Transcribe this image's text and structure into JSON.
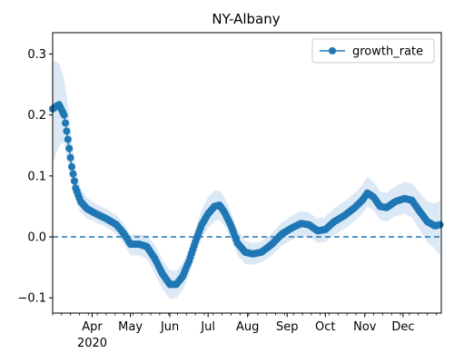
{
  "chart_data": {
    "type": "line",
    "title": "NY-Albany",
    "xlabel": "",
    "ylabel": "",
    "x_start": "2020-03-01",
    "x_end": "2020-12-31",
    "xlim": [
      "2020-03-01",
      "2020-12-31"
    ],
    "ylim": [
      -0.125,
      0.335
    ],
    "y_ticks": [
      {
        "value": 0.3,
        "label": "0.3"
      },
      {
        "value": 0.2,
        "label": "0.2"
      },
      {
        "value": 0.1,
        "label": "0.1"
      },
      {
        "value": 0.0,
        "label": "0.0"
      },
      {
        "value": -0.1,
        "label": "−0.1"
      }
    ],
    "x_ticks": [
      {
        "date": "2020-04-01",
        "label": "Apr"
      },
      {
        "date": "2020-05-01",
        "label": "May"
      },
      {
        "date": "2020-06-01",
        "label": "Jun"
      },
      {
        "date": "2020-07-01",
        "label": "Jul"
      },
      {
        "date": "2020-08-01",
        "label": "Aug"
      },
      {
        "date": "2020-09-01",
        "label": "Sep"
      },
      {
        "date": "2020-10-01",
        "label": "Oct"
      },
      {
        "date": "2020-11-01",
        "label": "Nov"
      },
      {
        "date": "2020-12-01",
        "label": "Dec"
      }
    ],
    "year_label": "2020",
    "reference_line": {
      "y": 0.0,
      "style": "dashed",
      "color": "#1f77b4"
    },
    "grid": false,
    "legend": {
      "position": "top-right"
    },
    "series": [
      {
        "name": "growth_rate",
        "color": "#1f77b4",
        "marker": "circle",
        "band_color": "#dbe8f5",
        "points": [
          {
            "x": "2020-03-01",
            "y": 0.21,
            "lo": 0.12,
            "hi": 0.29
          },
          {
            "x": "2020-03-06",
            "y": 0.217,
            "lo": 0.15,
            "hi": 0.285
          },
          {
            "x": "2020-03-10",
            "y": 0.2,
            "lo": 0.155,
            "hi": 0.26
          },
          {
            "x": "2020-03-13",
            "y": 0.16,
            "lo": 0.12,
            "hi": 0.215
          },
          {
            "x": "2020-03-16",
            "y": 0.115,
            "lo": 0.085,
            "hi": 0.16
          },
          {
            "x": "2020-03-19",
            "y": 0.08,
            "lo": 0.058,
            "hi": 0.112
          },
          {
            "x": "2020-03-23",
            "y": 0.058,
            "lo": 0.04,
            "hi": 0.08
          },
          {
            "x": "2020-03-28",
            "y": 0.046,
            "lo": 0.03,
            "hi": 0.064
          },
          {
            "x": "2020-04-04",
            "y": 0.038,
            "lo": 0.024,
            "hi": 0.054
          },
          {
            "x": "2020-04-12",
            "y": 0.03,
            "lo": 0.016,
            "hi": 0.046
          },
          {
            "x": "2020-04-20",
            "y": 0.02,
            "lo": 0.004,
            "hi": 0.036
          },
          {
            "x": "2020-04-26",
            "y": 0.005,
            "lo": -0.012,
            "hi": 0.022
          },
          {
            "x": "2020-05-01",
            "y": -0.012,
            "lo": -0.03,
            "hi": 0.004
          },
          {
            "x": "2020-05-08",
            "y": -0.012,
            "lo": -0.03,
            "hi": 0.004
          },
          {
            "x": "2020-05-14",
            "y": -0.016,
            "lo": -0.036,
            "hi": 0.002
          },
          {
            "x": "2020-05-20",
            "y": -0.035,
            "lo": -0.06,
            "hi": -0.012
          },
          {
            "x": "2020-05-26",
            "y": -0.06,
            "lo": -0.085,
            "hi": -0.036
          },
          {
            "x": "2020-06-01",
            "y": -0.078,
            "lo": -0.102,
            "hi": -0.055
          },
          {
            "x": "2020-06-06",
            "y": -0.078,
            "lo": -0.1,
            "hi": -0.056
          },
          {
            "x": "2020-06-11",
            "y": -0.065,
            "lo": -0.088,
            "hi": -0.043
          },
          {
            "x": "2020-06-16",
            "y": -0.04,
            "lo": -0.063,
            "hi": -0.018
          },
          {
            "x": "2020-06-21",
            "y": -0.008,
            "lo": -0.03,
            "hi": 0.014
          },
          {
            "x": "2020-06-26",
            "y": 0.02,
            "lo": -0.002,
            "hi": 0.045
          },
          {
            "x": "2020-07-01",
            "y": 0.038,
            "lo": 0.014,
            "hi": 0.065
          },
          {
            "x": "2020-07-06",
            "y": 0.05,
            "lo": 0.026,
            "hi": 0.076
          },
          {
            "x": "2020-07-10",
            "y": 0.052,
            "lo": 0.028,
            "hi": 0.076
          },
          {
            "x": "2020-07-14",
            "y": 0.04,
            "lo": 0.018,
            "hi": 0.064
          },
          {
            "x": "2020-07-19",
            "y": 0.018,
            "lo": -0.004,
            "hi": 0.04
          },
          {
            "x": "2020-07-24",
            "y": -0.01,
            "lo": -0.03,
            "hi": 0.012
          },
          {
            "x": "2020-07-30",
            "y": -0.025,
            "lo": -0.044,
            "hi": -0.006
          },
          {
            "x": "2020-08-05",
            "y": -0.028,
            "lo": -0.046,
            "hi": -0.01
          },
          {
            "x": "2020-08-12",
            "y": -0.025,
            "lo": -0.042,
            "hi": -0.007
          },
          {
            "x": "2020-08-20",
            "y": -0.012,
            "lo": -0.03,
            "hi": 0.006
          },
          {
            "x": "2020-08-28",
            "y": 0.005,
            "lo": -0.014,
            "hi": 0.024
          },
          {
            "x": "2020-09-05",
            "y": 0.015,
            "lo": -0.005,
            "hi": 0.035
          },
          {
            "x": "2020-09-12",
            "y": 0.022,
            "lo": 0.002,
            "hi": 0.042
          },
          {
            "x": "2020-09-18",
            "y": 0.02,
            "lo": 0.0,
            "hi": 0.04
          },
          {
            "x": "2020-09-25",
            "y": 0.01,
            "lo": -0.01,
            "hi": 0.03
          },
          {
            "x": "2020-10-01",
            "y": 0.012,
            "lo": -0.008,
            "hi": 0.033
          },
          {
            "x": "2020-10-08",
            "y": 0.025,
            "lo": 0.003,
            "hi": 0.047
          },
          {
            "x": "2020-10-16",
            "y": 0.035,
            "lo": 0.013,
            "hi": 0.058
          },
          {
            "x": "2020-10-24",
            "y": 0.048,
            "lo": 0.026,
            "hi": 0.072
          },
          {
            "x": "2020-10-30",
            "y": 0.06,
            "lo": 0.038,
            "hi": 0.085
          },
          {
            "x": "2020-11-03",
            "y": 0.072,
            "lo": 0.05,
            "hi": 0.098
          },
          {
            "x": "2020-11-08",
            "y": 0.065,
            "lo": 0.043,
            "hi": 0.09
          },
          {
            "x": "2020-11-13",
            "y": 0.05,
            "lo": 0.028,
            "hi": 0.074
          },
          {
            "x": "2020-11-18",
            "y": 0.048,
            "lo": 0.025,
            "hi": 0.072
          },
          {
            "x": "2020-11-25",
            "y": 0.058,
            "lo": 0.034,
            "hi": 0.083
          },
          {
            "x": "2020-12-02",
            "y": 0.063,
            "lo": 0.038,
            "hi": 0.09
          },
          {
            "x": "2020-12-08",
            "y": 0.06,
            "lo": 0.032,
            "hi": 0.088
          },
          {
            "x": "2020-12-14",
            "y": 0.042,
            "lo": 0.012,
            "hi": 0.072
          },
          {
            "x": "2020-12-20",
            "y": 0.025,
            "lo": -0.008,
            "hi": 0.058
          },
          {
            "x": "2020-12-26",
            "y": 0.018,
            "lo": -0.02,
            "hi": 0.055
          },
          {
            "x": "2020-12-30",
            "y": 0.02,
            "lo": -0.03,
            "hi": 0.06
          }
        ]
      }
    ]
  }
}
